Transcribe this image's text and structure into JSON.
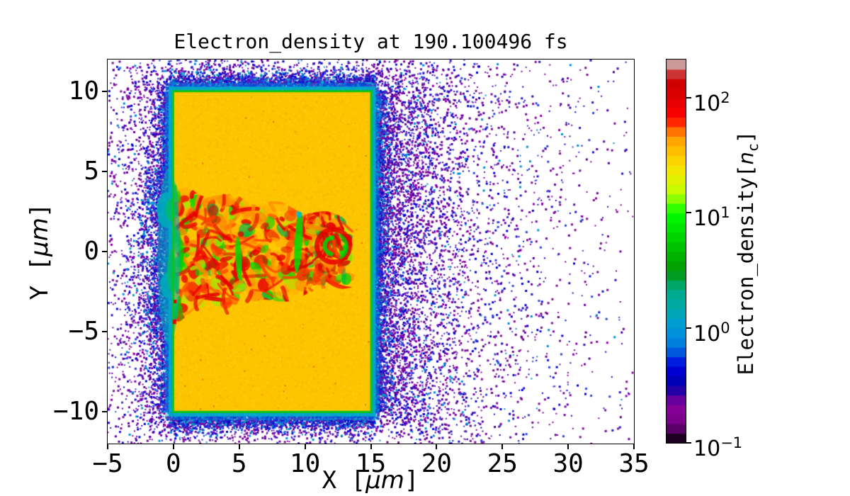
{
  "figure": {
    "background": "#ffffff"
  },
  "chart_data": {
    "type": "heatmap",
    "title": "Electron_density at 190.100496 fs",
    "time_fs": 190.100496,
    "xlabel": {
      "prefix": "X [",
      "unit": "μm",
      "suffix": "]"
    },
    "ylabel": {
      "prefix": "Y [",
      "unit": "μm",
      "suffix": "]"
    },
    "xlim": [
      -5,
      35
    ],
    "ylim": [
      -12,
      12
    ],
    "x_ticks": [
      -5,
      0,
      5,
      10,
      15,
      20,
      25,
      30,
      35
    ],
    "y_ticks": [
      10,
      5,
      0,
      -5,
      -10
    ],
    "grid": false,
    "colorbar": {
      "label": {
        "prefix": "Electron_density[",
        "var": "n",
        "sub": "c",
        "suffix": "]"
      },
      "scale": "log",
      "vmin": 0.1,
      "vmax": 215,
      "n_bands": 40,
      "ticks": [
        {
          "mantissa": "10",
          "exponent": "2",
          "value": 100
        },
        {
          "mantissa": "10",
          "exponent": "1",
          "value": 10
        },
        {
          "mantissa": "10",
          "exponent": "0",
          "value": 1
        },
        {
          "mantissa": "10",
          "exponent": "−1",
          "value": 0.1
        }
      ],
      "colormap": {
        "name": "nipy_spectral",
        "stops": [
          [
            0.0,
            0,
            0,
            0
          ],
          [
            0.05,
            0.4667,
            0,
            0.5333
          ],
          [
            0.1,
            0.5333,
            0,
            0.6
          ],
          [
            0.15,
            0,
            0,
            0.6667
          ],
          [
            0.2,
            0,
            0,
            0.8667
          ],
          [
            0.25,
            0,
            0.4667,
            0.8667
          ],
          [
            0.3,
            0,
            0.6,
            0.8667
          ],
          [
            0.35,
            0,
            0.6667,
            0.6667
          ],
          [
            0.4,
            0,
            0.6667,
            0.5333
          ],
          [
            0.45,
            0,
            0.6,
            0
          ],
          [
            0.5,
            0,
            0.7333,
            0
          ],
          [
            0.55,
            0,
            0.8667,
            0
          ],
          [
            0.6,
            0,
            1,
            0
          ],
          [
            0.65,
            0.7333,
            1,
            0
          ],
          [
            0.7,
            0.9333,
            0.9333,
            0
          ],
          [
            0.75,
            1,
            0.8,
            0
          ],
          [
            0.8,
            1,
            0.6,
            0
          ],
          [
            0.85,
            1,
            0,
            0
          ],
          [
            0.9,
            0.8667,
            0,
            0
          ],
          [
            0.95,
            0.8,
            0,
            0
          ],
          [
            1.0,
            0.8,
            0.8,
            0.8
          ]
        ]
      }
    },
    "features": {
      "target_slab": {
        "x_range_um": [
          0,
          15
        ],
        "y_range_um": [
          -10,
          10
        ],
        "density_nc": 30,
        "fill_color": "#fdc500",
        "description": "uniform over-critical plasma slab"
      },
      "slab_rim": {
        "green": "#0cc414",
        "cyan": "#00b2c8",
        "cyan_outer": "#0096e0",
        "teal_bulge": "#00a9ba",
        "teal_green": "#00bc62"
      },
      "channel": {
        "x_range_um": [
          0,
          13.6
        ],
        "y_halfwidth_um": [
          4.5,
          2.0
        ],
        "density_range_nc": [
          1,
          215
        ],
        "colors": [
          "#e60000",
          "#cc1100",
          "#ff4800",
          "#ff8c00",
          "#ffb400",
          "#ffd400",
          "#a6e800",
          "#00d800",
          "#00b44c"
        ],
        "description": "turbulent laser-drilled channel along y≈0"
      },
      "corona": {
        "density_range_nc": [
          0.1,
          1
        ],
        "extent_x_um": [
          -5,
          33
        ],
        "dot_colors": [
          "#7b0d9c",
          "#6a00a0",
          "#8f00ae",
          "#50009a",
          "#1f14cc",
          "#0000d2",
          "#3346dd",
          "#0090d8"
        ],
        "fringe_colors": [
          "#1b1ed6",
          "#0b0bc0",
          "#3c3ce8",
          "#0077d4",
          "#009fc8",
          "#5a10b4",
          "#7b0d9c"
        ],
        "description": "sparse expanding electron cloud surrounding the slab"
      }
    }
  }
}
